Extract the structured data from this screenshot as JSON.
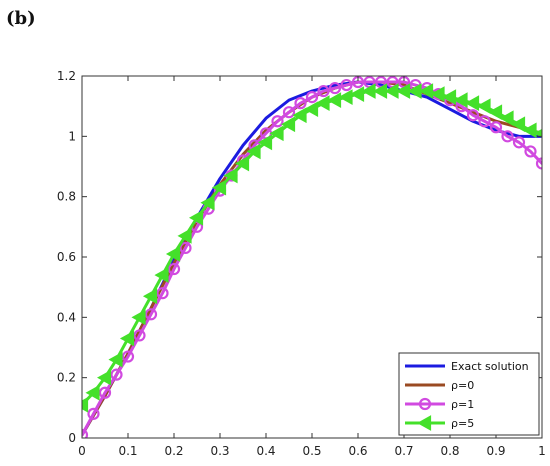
{
  "panel_label": "(b)",
  "chart_data": {
    "type": "line",
    "title": "",
    "xlabel": "",
    "ylabel": "",
    "xlim": [
      0,
      1
    ],
    "ylim": [
      0,
      1.2
    ],
    "xticks": [
      0,
      0.1,
      0.2,
      0.3,
      0.4,
      0.5,
      0.6,
      0.7,
      0.8,
      0.9,
      1
    ],
    "xtick_labels": [
      "0",
      "0.1",
      "0.2",
      "0.3",
      "0.4",
      "0.5",
      "0.6",
      "0.7",
      "0.8",
      "0.9",
      "1"
    ],
    "yticks": [
      0,
      0.2,
      0.4,
      0.6,
      0.8,
      1,
      1.2
    ],
    "ytick_labels": [
      "0",
      "0.2",
      "0.4",
      "0.6",
      "0.8",
      "1",
      "1.2"
    ],
    "grid": false,
    "legend_position": "bottom-right",
    "series": [
      {
        "name": "Exact solution",
        "color": "#1b1be0",
        "marker": "none",
        "x": [
          0,
          0.05,
          0.1,
          0.15,
          0.2,
          0.25,
          0.3,
          0.35,
          0.4,
          0.45,
          0.5,
          0.55,
          0.6,
          0.65,
          0.7,
          0.75,
          0.8,
          0.85,
          0.9,
          0.95,
          1
        ],
        "y": [
          0.01,
          0.14,
          0.28,
          0.43,
          0.59,
          0.73,
          0.86,
          0.97,
          1.06,
          1.12,
          1.15,
          1.17,
          1.18,
          1.17,
          1.15,
          1.13,
          1.09,
          1.05,
          1.02,
          1.0,
          1.0
        ]
      },
      {
        "name": "ρ=0",
        "color": "#9a4a22",
        "marker": "none",
        "x": [
          0,
          0.05,
          0.1,
          0.15,
          0.2,
          0.25,
          0.3,
          0.35,
          0.4,
          0.45,
          0.5,
          0.55,
          0.6,
          0.65,
          0.7,
          0.75,
          0.8,
          0.85,
          0.9,
          0.95,
          1
        ],
        "y": [
          0.01,
          0.14,
          0.28,
          0.43,
          0.58,
          0.72,
          0.84,
          0.94,
          1.02,
          1.08,
          1.13,
          1.16,
          1.18,
          1.18,
          1.17,
          1.14,
          1.11,
          1.08,
          1.05,
          1.03,
          1.01
        ]
      },
      {
        "name": "ρ=1",
        "color": "#d14ae0",
        "marker": "circle",
        "x": [
          0,
          0.025,
          0.05,
          0.075,
          0.1,
          0.125,
          0.15,
          0.175,
          0.2,
          0.225,
          0.25,
          0.275,
          0.3,
          0.325,
          0.35,
          0.375,
          0.4,
          0.425,
          0.45,
          0.475,
          0.5,
          0.525,
          0.55,
          0.575,
          0.6,
          0.625,
          0.65,
          0.675,
          0.7,
          0.725,
          0.75,
          0.775,
          0.8,
          0.825,
          0.85,
          0.875,
          0.9,
          0.925,
          0.95,
          0.975,
          1
        ],
        "y": [
          0.01,
          0.08,
          0.15,
          0.21,
          0.27,
          0.34,
          0.41,
          0.48,
          0.56,
          0.63,
          0.7,
          0.76,
          0.82,
          0.87,
          0.92,
          0.97,
          1.01,
          1.05,
          1.08,
          1.11,
          1.13,
          1.15,
          1.16,
          1.17,
          1.18,
          1.18,
          1.18,
          1.18,
          1.18,
          1.17,
          1.16,
          1.14,
          1.12,
          1.1,
          1.07,
          1.05,
          1.03,
          1.0,
          0.98,
          0.95,
          0.91
        ]
      },
      {
        "name": "ρ=5",
        "color": "#44e02a",
        "marker": "triangle-left",
        "x": [
          0,
          0.025,
          0.05,
          0.075,
          0.1,
          0.125,
          0.15,
          0.175,
          0.2,
          0.225,
          0.25,
          0.275,
          0.3,
          0.325,
          0.35,
          0.375,
          0.4,
          0.425,
          0.45,
          0.475,
          0.5,
          0.525,
          0.55,
          0.575,
          0.6,
          0.625,
          0.65,
          0.675,
          0.7,
          0.725,
          0.75,
          0.775,
          0.8,
          0.825,
          0.85,
          0.875,
          0.9,
          0.925,
          0.95,
          0.975,
          1
        ],
        "y": [
          0.11,
          0.15,
          0.2,
          0.26,
          0.33,
          0.4,
          0.47,
          0.54,
          0.61,
          0.67,
          0.73,
          0.78,
          0.83,
          0.87,
          0.91,
          0.95,
          0.98,
          1.01,
          1.04,
          1.07,
          1.09,
          1.11,
          1.12,
          1.13,
          1.14,
          1.15,
          1.15,
          1.15,
          1.15,
          1.15,
          1.15,
          1.14,
          1.13,
          1.12,
          1.11,
          1.1,
          1.08,
          1.06,
          1.04,
          1.02,
          1.01
        ]
      }
    ]
  }
}
